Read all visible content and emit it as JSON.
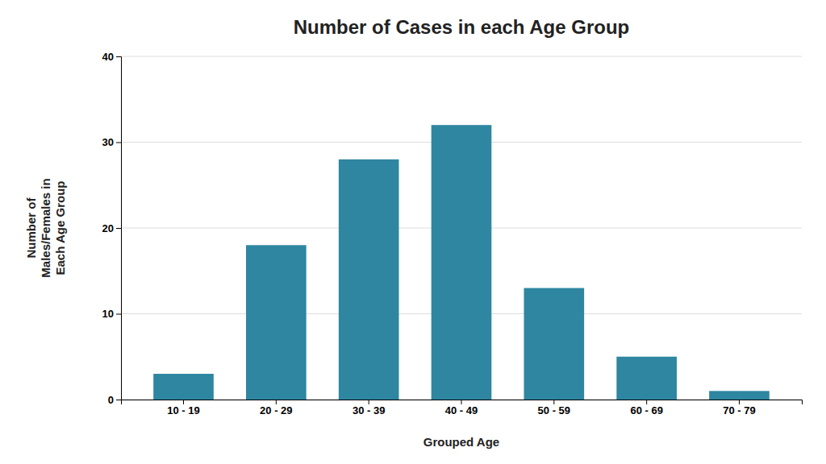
{
  "chart_data": {
    "type": "bar",
    "title": "Number of Cases in each Age Group",
    "xlabel": "Grouped Age",
    "ylabel": "Number of\nMales/Females in\nEach Age Group",
    "categories": [
      "10 - 19",
      "20 - 29",
      "30 - 39",
      "40 - 49",
      "50 - 59",
      "60 - 69",
      "70 - 79"
    ],
    "values": [
      3,
      18,
      28,
      32,
      13,
      5,
      1
    ],
    "color": "#2e86a0",
    "ylim": [
      0,
      40
    ],
    "yticks": [
      0,
      10,
      20,
      30,
      40
    ],
    "grid": true
  }
}
